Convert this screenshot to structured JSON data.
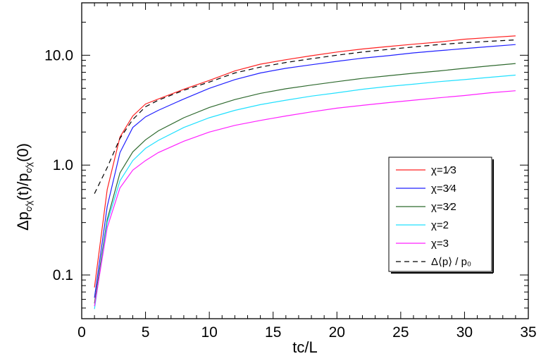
{
  "chart_data": {
    "type": "line",
    "xlabel": "tc/L",
    "ylabel_parts": {
      "delta": "Δ",
      "p": "p",
      "sub": "c⁄χ",
      "mid": "(t)/",
      "end": "(0)"
    },
    "xlim": [
      0,
      35
    ],
    "ylim": [
      0.04,
      30
    ],
    "yscale": "log",
    "x_ticks": [
      0,
      5,
      10,
      15,
      20,
      25,
      30,
      35
    ],
    "x_tick_labels": [
      "0",
      "5",
      "10",
      "15",
      "20",
      "25",
      "30",
      "35"
    ],
    "y_ticks": [
      0.1,
      1,
      10
    ],
    "y_tick_labels": [
      "0.1",
      "1.0",
      "10.0"
    ],
    "legend_position": "right",
    "series": [
      {
        "name": "χ=1⁄3",
        "color": "#ff2020",
        "dash": "solid",
        "x": [
          1,
          2,
          3,
          4,
          5,
          6,
          8,
          10,
          12,
          14,
          16,
          18,
          20,
          22,
          24,
          26,
          28,
          30,
          32,
          34
        ],
        "y": [
          0.077,
          0.6,
          1.8,
          2.8,
          3.6,
          4.0,
          4.9,
          5.9,
          7.2,
          8.3,
          9.1,
          9.9,
          10.7,
          11.4,
          12.0,
          12.6,
          13.2,
          14.0,
          14.5,
          15.0
        ]
      },
      {
        "name": "χ=3⁄4",
        "color": "#2020ff",
        "dash": "solid",
        "x": [
          1,
          2,
          3,
          4,
          5,
          6,
          8,
          10,
          12,
          14,
          16,
          18,
          20,
          22,
          24,
          26,
          28,
          30,
          32,
          34
        ],
        "y": [
          0.062,
          0.42,
          1.3,
          2.2,
          2.75,
          3.15,
          4.0,
          5.0,
          6.0,
          6.9,
          7.6,
          8.2,
          8.8,
          9.4,
          9.9,
          10.5,
          11.0,
          11.5,
          12.0,
          12.5
        ]
      },
      {
        "name": "χ=3⁄2",
        "color": "#2f6a2f",
        "dash": "solid",
        "x": [
          1,
          2,
          3,
          4,
          5,
          6,
          8,
          10,
          12,
          14,
          16,
          18,
          20,
          22,
          24,
          26,
          28,
          30,
          32,
          34
        ],
        "y": [
          0.055,
          0.32,
          0.85,
          1.32,
          1.7,
          2.05,
          2.7,
          3.35,
          3.95,
          4.5,
          4.95,
          5.35,
          5.75,
          6.15,
          6.5,
          6.85,
          7.2,
          7.6,
          8.0,
          8.4
        ]
      },
      {
        "name": "χ=2",
        "color": "#20e0ff",
        "dash": "solid",
        "x": [
          1,
          2,
          3,
          4,
          5,
          6,
          8,
          10,
          12,
          14,
          16,
          18,
          20,
          22,
          24,
          26,
          28,
          30,
          32,
          34
        ],
        "y": [
          0.049,
          0.3,
          0.72,
          1.1,
          1.42,
          1.68,
          2.2,
          2.7,
          3.15,
          3.55,
          3.9,
          4.25,
          4.55,
          4.9,
          5.2,
          5.45,
          5.75,
          6.0,
          6.3,
          6.6
        ]
      },
      {
        "name": "χ=3",
        "color": "#ff20ff",
        "dash": "solid",
        "x": [
          1,
          2,
          3,
          4,
          5,
          6,
          8,
          10,
          12,
          14,
          16,
          18,
          20,
          22,
          24,
          26,
          28,
          30,
          32,
          34
        ],
        "y": [
          0.052,
          0.27,
          0.62,
          0.9,
          1.1,
          1.3,
          1.65,
          2.0,
          2.3,
          2.55,
          2.8,
          3.05,
          3.3,
          3.5,
          3.7,
          3.9,
          4.1,
          4.3,
          4.55,
          4.75
        ]
      },
      {
        "name": "Δ⟨p⟩ / p₀",
        "color": "#000000",
        "dash": "dashed",
        "x": [
          1,
          2,
          3,
          4,
          5,
          6,
          8,
          10,
          12,
          14,
          16,
          18,
          20,
          22,
          24,
          26,
          28,
          30,
          32,
          34
        ],
        "y": [
          0.55,
          0.95,
          1.75,
          2.6,
          3.4,
          3.9,
          4.8,
          5.7,
          6.9,
          7.8,
          8.6,
          9.3,
          10.0,
          10.7,
          11.3,
          11.9,
          12.5,
          13.0,
          13.4,
          13.8
        ]
      }
    ]
  }
}
